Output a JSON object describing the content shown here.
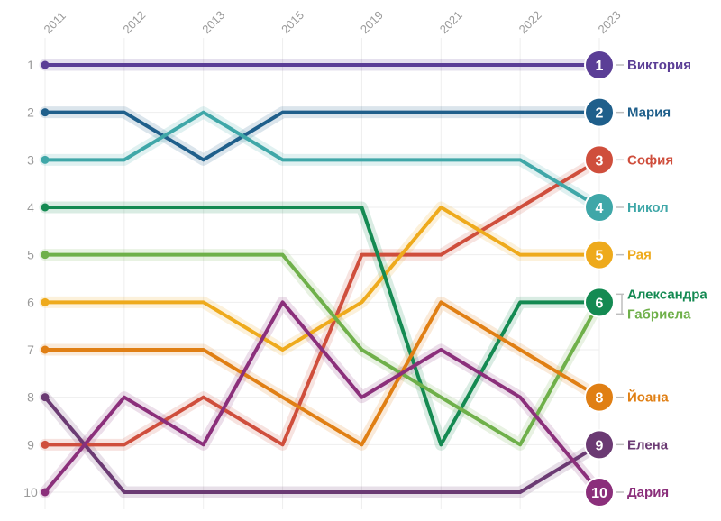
{
  "chart_data": {
    "type": "line",
    "title": "",
    "xlabel": "",
    "ylabel": "",
    "x": [
      "2011",
      "2012",
      "2013",
      "2015",
      "2019",
      "2021",
      "2022",
      "2023"
    ],
    "y_ticks": [
      "1",
      "2",
      "3",
      "4",
      "5",
      "6",
      "7",
      "8",
      "9",
      "10"
    ],
    "ylim": [
      1,
      10
    ],
    "y_inverted": true,
    "grid": true,
    "series": [
      {
        "name": "Виктория",
        "end_rank": "1",
        "color": "#5b3e96",
        "values": [
          1,
          1,
          1,
          1,
          1,
          1,
          1,
          1
        ]
      },
      {
        "name": "Мария",
        "end_rank": "2",
        "color": "#1f5f8b",
        "values": [
          2,
          2,
          3,
          2,
          2,
          2,
          2,
          2
        ]
      },
      {
        "name": "София",
        "end_rank": "3",
        "color": "#cf4e3c",
        "values": [
          9,
          9,
          8,
          9,
          5,
          5,
          4,
          3
        ]
      },
      {
        "name": "Никол",
        "end_rank": "4",
        "color": "#3fa7a8",
        "values": [
          3,
          3,
          2,
          3,
          3,
          3,
          3,
          4
        ]
      },
      {
        "name": "Рая",
        "end_rank": "5",
        "color": "#eeaa1c",
        "values": [
          6,
          6,
          6,
          7,
          6,
          4,
          5,
          5
        ]
      },
      {
        "name": "Александра",
        "end_rank": "6",
        "color": "#148a52",
        "values": [
          4,
          4,
          4,
          4,
          4,
          9,
          6,
          6
        ]
      },
      {
        "name": "Габриела",
        "end_rank": "6",
        "color": "#6fb04a",
        "values": [
          5,
          5,
          5,
          5,
          7,
          8,
          9,
          6
        ]
      },
      {
        "name": "Йоана",
        "end_rank": "8",
        "color": "#e07f14",
        "values": [
          7,
          7,
          7,
          8,
          9,
          6,
          7,
          8
        ]
      },
      {
        "name": "Елена",
        "end_rank": "9",
        "color": "#6b3a73",
        "values": [
          8,
          10,
          10,
          10,
          10,
          10,
          10,
          9
        ]
      },
      {
        "name": "Дария",
        "end_rank": "10",
        "color": "#8b2f7b",
        "values": [
          10,
          8,
          9,
          6,
          8,
          7,
          8,
          10
        ]
      }
    ]
  }
}
